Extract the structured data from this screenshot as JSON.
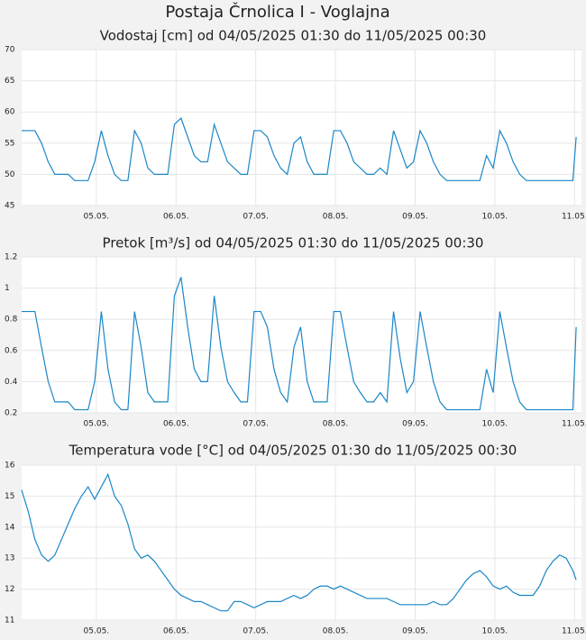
{
  "title": "Postaja Črnolica I - Voglajna",
  "chart_data": [
    {
      "type": "line",
      "title": "Vodostaj [cm] od 04/05/2025 01:30 do 11/05/2025 00:30",
      "color": "#1a86c8",
      "grid": true,
      "x": [
        0,
        2,
        4,
        6,
        8,
        10,
        12,
        14,
        16,
        18,
        20,
        22,
        24,
        26,
        28,
        30,
        32,
        34,
        36,
        38,
        40,
        42,
        44,
        46,
        48,
        50,
        52,
        54,
        56,
        58,
        60,
        62,
        64,
        66,
        68,
        70,
        72,
        74,
        76,
        78,
        80,
        82,
        84,
        86,
        88,
        90,
        92,
        94,
        96,
        98,
        100,
        102,
        104,
        106,
        108,
        110,
        112,
        114,
        116,
        118,
        120,
        122,
        124,
        126,
        128,
        130,
        132,
        134,
        136,
        138,
        140,
        142,
        144,
        146,
        148,
        150,
        152,
        154,
        156,
        158,
        160,
        162,
        164,
        166,
        167
      ],
      "values": [
        57,
        57,
        57,
        55,
        52,
        50,
        50,
        50,
        49,
        49,
        49,
        52,
        57,
        53,
        50,
        49,
        49,
        57,
        55,
        51,
        50,
        50,
        50,
        58,
        59,
        56,
        53,
        52,
        52,
        58,
        55,
        52,
        51,
        50,
        50,
        57,
        57,
        56,
        53,
        51,
        50,
        55,
        56,
        52,
        50,
        50,
        50,
        57,
        57,
        55,
        52,
        51,
        50,
        50,
        51,
        50,
        57,
        54,
        51,
        52,
        57,
        55,
        52,
        50,
        49,
        49,
        49,
        49,
        49,
        49,
        53,
        51,
        57,
        55,
        52,
        50,
        49,
        49,
        49,
        49,
        49,
        49,
        49,
        49,
        56
      ],
      "xlim": [
        0,
        168.6
      ],
      "xticks": [
        {
          "value": 22.5,
          "label": "05.05."
        },
        {
          "value": 46.5,
          "label": "06.05."
        },
        {
          "value": 70.5,
          "label": "07.05."
        },
        {
          "value": 94.5,
          "label": "08.05."
        },
        {
          "value": 118.5,
          "label": "09.05."
        },
        {
          "value": 142.5,
          "label": "10.05."
        },
        {
          "value": 166.5,
          "label": "11.05."
        }
      ],
      "ylim": [
        45,
        70
      ],
      "yticks": [
        45,
        50,
        55,
        60,
        65,
        70
      ]
    },
    {
      "type": "line",
      "title": "Pretok [m³/s] od 04/05/2025 01:30 do 11/05/2025 00:30",
      "color": "#1a86c8",
      "grid": true,
      "x": [
        0,
        2,
        4,
        6,
        8,
        10,
        12,
        14,
        16,
        18,
        20,
        22,
        24,
        26,
        28,
        30,
        32,
        34,
        36,
        38,
        40,
        42,
        44,
        46,
        48,
        50,
        52,
        54,
        56,
        58,
        60,
        62,
        64,
        66,
        68,
        70,
        72,
        74,
        76,
        78,
        80,
        82,
        84,
        86,
        88,
        90,
        92,
        94,
        96,
        98,
        100,
        102,
        104,
        106,
        108,
        110,
        112,
        114,
        116,
        118,
        120,
        122,
        124,
        126,
        128,
        130,
        132,
        134,
        136,
        138,
        140,
        142,
        144,
        146,
        148,
        150,
        152,
        154,
        156,
        158,
        160,
        162,
        164,
        166,
        167
      ],
      "values": [
        0.85,
        0.85,
        0.85,
        0.62,
        0.4,
        0.27,
        0.27,
        0.27,
        0.22,
        0.22,
        0.22,
        0.4,
        0.85,
        0.48,
        0.27,
        0.22,
        0.22,
        0.85,
        0.62,
        0.33,
        0.27,
        0.27,
        0.27,
        0.95,
        1.07,
        0.75,
        0.48,
        0.4,
        0.4,
        0.95,
        0.62,
        0.4,
        0.33,
        0.27,
        0.27,
        0.85,
        0.85,
        0.75,
        0.48,
        0.33,
        0.27,
        0.62,
        0.75,
        0.4,
        0.27,
        0.27,
        0.27,
        0.85,
        0.85,
        0.62,
        0.4,
        0.33,
        0.27,
        0.27,
        0.33,
        0.27,
        0.85,
        0.55,
        0.33,
        0.4,
        0.85,
        0.62,
        0.4,
        0.27,
        0.22,
        0.22,
        0.22,
        0.22,
        0.22,
        0.22,
        0.48,
        0.33,
        0.85,
        0.62,
        0.4,
        0.27,
        0.22,
        0.22,
        0.22,
        0.22,
        0.22,
        0.22,
        0.22,
        0.22,
        0.75
      ],
      "xlim": [
        0,
        168.6
      ],
      "xticks": [
        {
          "value": 22.5,
          "label": "05.05."
        },
        {
          "value": 46.5,
          "label": "06.05."
        },
        {
          "value": 70.5,
          "label": "07.05."
        },
        {
          "value": 94.5,
          "label": "08.05."
        },
        {
          "value": 118.5,
          "label": "09.05."
        },
        {
          "value": 142.5,
          "label": "10.05."
        },
        {
          "value": 166.5,
          "label": "11.05."
        }
      ],
      "ylim": [
        0.2,
        1.2
      ],
      "yticks": [
        0.2,
        0.4,
        0.6,
        0.8,
        1,
        1.2
      ]
    },
    {
      "type": "line",
      "title": "Temperatura vode [°C] od 04/05/2025 01:30 do 11/05/2025 00:30",
      "color": "#1a86c8",
      "grid": true,
      "x": [
        0,
        2,
        4,
        6,
        8,
        10,
        12,
        14,
        16,
        18,
        20,
        22,
        24,
        26,
        28,
        30,
        32,
        34,
        36,
        38,
        40,
        42,
        44,
        46,
        48,
        50,
        52,
        54,
        56,
        58,
        60,
        62,
        64,
        66,
        68,
        70,
        72,
        74,
        76,
        78,
        80,
        82,
        84,
        86,
        88,
        90,
        92,
        94,
        96,
        98,
        100,
        102,
        104,
        106,
        108,
        110,
        112,
        114,
        116,
        118,
        120,
        122,
        124,
        126,
        128,
        130,
        132,
        134,
        136,
        138,
        140,
        142,
        144,
        146,
        148,
        150,
        152,
        154,
        156,
        158,
        160,
        162,
        164,
        166,
        167
      ],
      "values": [
        15.2,
        14.5,
        13.6,
        13.1,
        12.9,
        13.1,
        13.6,
        14.1,
        14.6,
        15.0,
        15.3,
        14.9,
        15.3,
        15.7,
        15.0,
        14.7,
        14.1,
        13.3,
        13.0,
        13.1,
        12.9,
        12.6,
        12.3,
        12.0,
        11.8,
        11.7,
        11.6,
        11.6,
        11.5,
        11.4,
        11.3,
        11.3,
        11.6,
        11.6,
        11.5,
        11.4,
        11.5,
        11.6,
        11.6,
        11.6,
        11.7,
        11.8,
        11.7,
        11.8,
        12.0,
        12.1,
        12.1,
        12.0,
        12.1,
        12.0,
        11.9,
        11.8,
        11.7,
        11.7,
        11.7,
        11.7,
        11.6,
        11.5,
        11.5,
        11.5,
        11.5,
        11.5,
        11.6,
        11.5,
        11.5,
        11.7,
        12.0,
        12.3,
        12.5,
        12.6,
        12.4,
        12.1,
        12.0,
        12.1,
        11.9,
        11.8,
        11.8,
        11.8,
        12.1,
        12.6,
        12.9,
        13.1,
        13.0,
        12.6,
        12.3
      ],
      "xlim": [
        0,
        168.6
      ],
      "xticks": [
        {
          "value": 22.5,
          "label": "05.05."
        },
        {
          "value": 46.5,
          "label": "06.05."
        },
        {
          "value": 70.5,
          "label": "07.05."
        },
        {
          "value": 94.5,
          "label": "08.05."
        },
        {
          "value": 118.5,
          "label": "09.05."
        },
        {
          "value": 142.5,
          "label": "10.05."
        },
        {
          "value": 166.5,
          "label": "11.05."
        }
      ],
      "ylim": [
        11,
        16
      ],
      "yticks": [
        11,
        12,
        13,
        14,
        15,
        16
      ]
    }
  ]
}
